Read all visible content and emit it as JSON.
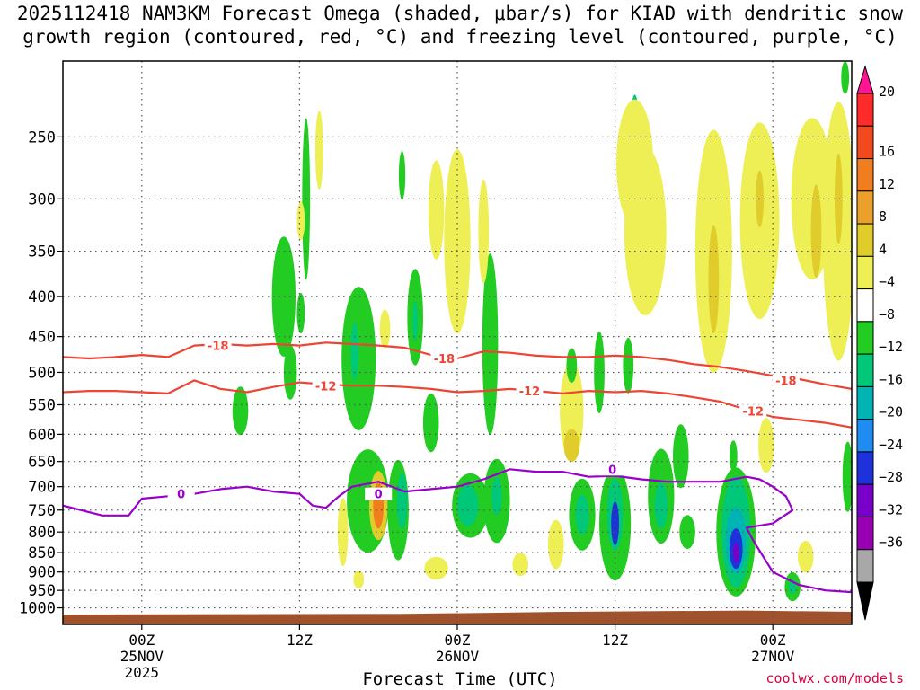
{
  "title_line1": "2025112418 NAM3KM Forecast Omega (shaded, μbar/s) for KIAD with dendritic snow",
  "title_line2": "growth region (contoured, red, °C) and freezing level (contoured, purple, °C)",
  "credit": "coolwx.com/models",
  "colors": {
    "red_contour": "#ee4433",
    "purple_contour": "#9900cc",
    "ground": "#a0522d",
    "grid": "#555555"
  },
  "chart_data": {
    "type": "heatmap",
    "title": "2025112418 NAM3KM Forecast Omega (shaded, μbar/s) for KIAD with dendritic snow growth region (contoured, red, °C) and freezing level (contoured, purple, °C)",
    "xlabel": "Forecast Time (UTC)",
    "ylabel": "",
    "xlim": [
      -6,
      54
    ],
    "ylim": [
      1050,
      200
    ],
    "y_scale": "log-pressure",
    "grid": true,
    "x_ticks": [
      {
        "value": 0,
        "lines": [
          "00Z",
          "25NOV",
          "2025"
        ]
      },
      {
        "value": 12,
        "lines": [
          "12Z"
        ]
      },
      {
        "value": 24,
        "lines": [
          "00Z",
          "26NOV"
        ]
      },
      {
        "value": 36,
        "lines": [
          "12Z"
        ]
      },
      {
        "value": 48,
        "lines": [
          "00Z",
          "27NOV"
        ]
      }
    ],
    "y_ticks": [
      250,
      300,
      350,
      400,
      450,
      500,
      550,
      600,
      650,
      700,
      750,
      800,
      850,
      900,
      950,
      1000
    ],
    "colorbar": {
      "labels": [
        "20",
        "16",
        "12",
        "8",
        "4",
        "−4",
        "−8",
        "−12",
        "−16",
        "−20",
        "−24",
        "−28",
        "−32",
        "−36"
      ],
      "colors": [
        "#ff2a2a",
        "#f04a1e",
        "#f07d1e",
        "#eaa02a",
        "#e0cc2a",
        "#eeee55",
        "#ffffff",
        "#22cc22",
        "#00c878",
        "#00b4b4",
        "#1e8cf0",
        "#1e32dc",
        "#7800c8",
        "#9900b4",
        "#a8a8a8"
      ],
      "extend_top": "#ff1493",
      "extend_bottom": "#000000"
    },
    "series": [
      {
        "name": "-18",
        "x": [
          -6,
          -4,
          -2,
          0,
          2,
          4,
          6,
          8,
          10,
          12,
          14,
          16,
          18,
          20,
          22,
          24,
          26,
          28,
          30,
          32,
          34,
          36,
          38,
          40,
          42,
          44,
          46,
          48,
          50,
          52,
          54
        ],
        "y": [
          478,
          480,
          478,
          475,
          478,
          462,
          460,
          462,
          460,
          462,
          458,
          460,
          462,
          465,
          475,
          480,
          470,
          472,
          476,
          478,
          478,
          476,
          478,
          482,
          488,
          492,
          498,
          505,
          510,
          518,
          525
        ]
      },
      {
        "name": "-12",
        "x": [
          -6,
          -4,
          -2,
          0,
          2,
          4,
          6,
          8,
          10,
          12,
          14,
          16,
          18,
          20,
          22,
          24,
          26,
          28,
          30,
          32,
          34,
          36,
          38,
          40,
          42,
          44,
          46,
          48,
          50,
          52,
          54
        ],
        "y": [
          530,
          528,
          528,
          530,
          532,
          512,
          525,
          530,
          522,
          515,
          518,
          520,
          520,
          522,
          525,
          530,
          528,
          525,
          528,
          532,
          528,
          530,
          528,
          532,
          538,
          545,
          558,
          570,
          575,
          580,
          588
        ]
      },
      {
        "name": "0",
        "x": [
          -6,
          -3,
          -1,
          0,
          2,
          4,
          6,
          8,
          10,
          12,
          13,
          14,
          15,
          16,
          18,
          20,
          22,
          24,
          26,
          28,
          30,
          32,
          34,
          36,
          38,
          40,
          42,
          44,
          46,
          47,
          48,
          49,
          49.5,
          48,
          46,
          46.5,
          48,
          50,
          52,
          54
        ],
        "y": [
          740,
          762,
          762,
          725,
          720,
          715,
          705,
          700,
          710,
          715,
          740,
          745,
          720,
          700,
          690,
          710,
          705,
          700,
          685,
          665,
          670,
          670,
          680,
          678,
          685,
          690,
          690,
          690,
          680,
          685,
          700,
          720,
          750,
          780,
          790,
          820,
          900,
          935,
          950,
          955
        ]
      }
    ],
    "contour_labels": [
      {
        "text": "-18",
        "x": 5.8,
        "y": 462,
        "color": "#ee4433"
      },
      {
        "text": "-18",
        "x": 23,
        "y": 480,
        "color": "#ee4433"
      },
      {
        "text": "-18",
        "x": 49,
        "y": 512,
        "color": "#ee4433"
      },
      {
        "text": "-12",
        "x": 14,
        "y": 520,
        "color": "#ee4433"
      },
      {
        "text": "-12",
        "x": 29.5,
        "y": 528,
        "color": "#ee4433"
      },
      {
        "text": "-12",
        "x": 46.5,
        "y": 560,
        "color": "#ee4433"
      },
      {
        "text": "0",
        "x": 3,
        "y": 715,
        "color": "#9900cc"
      },
      {
        "text": "0",
        "x": 18,
        "y": 715,
        "color": "#9900cc"
      },
      {
        "text": "0",
        "x": 35.8,
        "y": 665,
        "color": "#9900cc"
      }
    ],
    "omega_cells": [
      {
        "x": 10.8,
        "y": 400,
        "rx": 0.9,
        "ry": 70,
        "v": -6
      },
      {
        "x": 11.3,
        "y": 500,
        "rx": 0.5,
        "ry": 40,
        "v": -6
      },
      {
        "x": 7.5,
        "y": 560,
        "rx": 0.6,
        "ry": 40,
        "v": -6
      },
      {
        "x": 12.5,
        "y": 300,
        "rx": 0.3,
        "ry": 70,
        "v": -6
      },
      {
        "x": 13.5,
        "y": 260,
        "rx": 0.3,
        "ry": 30,
        "v": 4
      },
      {
        "x": 12.1,
        "y": 320,
        "rx": 0.3,
        "ry": 18,
        "v": 4
      },
      {
        "x": 12.1,
        "y": 420,
        "rx": 0.3,
        "ry": 25,
        "v": -6
      },
      {
        "x": 16.5,
        "y": 480,
        "rx": 1.3,
        "ry": 100,
        "v": -6
      },
      {
        "x": 16.2,
        "y": 470,
        "rx": 0.3,
        "ry": 40,
        "v": -12
      },
      {
        "x": 19.8,
        "y": 280,
        "rx": 0.25,
        "ry": 20,
        "v": -6
      },
      {
        "x": 18.5,
        "y": 440,
        "rx": 0.4,
        "ry": 25,
        "v": 4
      },
      {
        "x": 17.2,
        "y": 730,
        "rx": 1.6,
        "ry": 110,
        "v": -6
      },
      {
        "x": 18.0,
        "y": 740,
        "rx": 0.7,
        "ry": 75,
        "v": 8
      },
      {
        "x": 18.0,
        "y": 740,
        "rx": 0.4,
        "ry": 50,
        "v": 16
      },
      {
        "x": 19.5,
        "y": 750,
        "rx": 0.8,
        "ry": 110,
        "v": -6
      },
      {
        "x": 19.8,
        "y": 730,
        "rx": 0.4,
        "ry": 60,
        "v": -12
      },
      {
        "x": 15.3,
        "y": 800,
        "rx": 0.4,
        "ry": 80,
        "v": 4
      },
      {
        "x": 16.5,
        "y": 920,
        "rx": 0.4,
        "ry": 25,
        "v": 4
      },
      {
        "x": 20.8,
        "y": 425,
        "rx": 0.6,
        "ry": 60,
        "v": -6
      },
      {
        "x": 20.8,
        "y": 430,
        "rx": 0.2,
        "ry": 25,
        "v": -12
      },
      {
        "x": 22.4,
        "y": 310,
        "rx": 0.6,
        "ry": 45,
        "v": 4
      },
      {
        "x": 24.0,
        "y": 340,
        "rx": 1.0,
        "ry": 90,
        "v": 4
      },
      {
        "x": 22.0,
        "y": 580,
        "rx": 0.6,
        "ry": 50,
        "v": -6
      },
      {
        "x": 26.5,
        "y": 460,
        "rx": 0.6,
        "ry": 120,
        "v": -6
      },
      {
        "x": 26.0,
        "y": 330,
        "rx": 0.4,
        "ry": 50,
        "v": 4
      },
      {
        "x": 25.0,
        "y": 740,
        "rx": 1.4,
        "ry": 70,
        "v": -6
      },
      {
        "x": 24.8,
        "y": 740,
        "rx": 0.8,
        "ry": 45,
        "v": -12
      },
      {
        "x": 27.0,
        "y": 730,
        "rx": 1.0,
        "ry": 90,
        "v": -6
      },
      {
        "x": 27.0,
        "y": 720,
        "rx": 0.4,
        "ry": 40,
        "v": -12
      },
      {
        "x": 22.4,
        "y": 890,
        "rx": 0.9,
        "ry": 30,
        "v": 4
      },
      {
        "x": 28.8,
        "y": 880,
        "rx": 0.6,
        "ry": 30,
        "v": 4
      },
      {
        "x": 31.5,
        "y": 830,
        "rx": 0.6,
        "ry": 60,
        "v": 4
      },
      {
        "x": 32.7,
        "y": 560,
        "rx": 0.9,
        "ry": 80,
        "v": 4
      },
      {
        "x": 32.7,
        "y": 620,
        "rx": 0.6,
        "ry": 30,
        "v": 8
      },
      {
        "x": 32.7,
        "y": 490,
        "rx": 0.4,
        "ry": 25,
        "v": -6
      },
      {
        "x": 34.8,
        "y": 500,
        "rx": 0.4,
        "ry": 60,
        "v": -6
      },
      {
        "x": 33.5,
        "y": 760,
        "rx": 1.0,
        "ry": 80,
        "v": -6
      },
      {
        "x": 33.5,
        "y": 760,
        "rx": 0.5,
        "ry": 45,
        "v": -12
      },
      {
        "x": 36.0,
        "y": 780,
        "rx": 1.2,
        "ry": 130,
        "v": -6
      },
      {
        "x": 36.0,
        "y": 760,
        "rx": 0.6,
        "ry": 80,
        "v": -12
      },
      {
        "x": 36.0,
        "y": 780,
        "rx": 0.3,
        "ry": 50,
        "v": -24
      },
      {
        "x": 37.5,
        "y": 240,
        "rx": 0.3,
        "ry": 20,
        "v": -12
      },
      {
        "x": 37.5,
        "y": 270,
        "rx": 1.4,
        "ry": 50,
        "v": 4
      },
      {
        "x": 38.3,
        "y": 330,
        "rx": 1.6,
        "ry": 80,
        "v": 4
      },
      {
        "x": 37.0,
        "y": 490,
        "rx": 0.4,
        "ry": 40,
        "v": -6
      },
      {
        "x": 39.5,
        "y": 720,
        "rx": 1.0,
        "ry": 100,
        "v": -6
      },
      {
        "x": 39.5,
        "y": 740,
        "rx": 0.5,
        "ry": 50,
        "v": -12
      },
      {
        "x": 41.0,
        "y": 640,
        "rx": 0.6,
        "ry": 60,
        "v": -6
      },
      {
        "x": 41.5,
        "y": 800,
        "rx": 0.6,
        "ry": 40,
        "v": -6
      },
      {
        "x": 43.5,
        "y": 350,
        "rx": 1.4,
        "ry": 120,
        "v": 4
      },
      {
        "x": 43.5,
        "y": 380,
        "rx": 0.4,
        "ry": 60,
        "v": 8
      },
      {
        "x": 45.2,
        "y": 800,
        "rx": 1.5,
        "ry": 150,
        "v": -6
      },
      {
        "x": 45.2,
        "y": 800,
        "rx": 1.1,
        "ry": 130,
        "v": -12
      },
      {
        "x": 45.2,
        "y": 820,
        "rx": 0.8,
        "ry": 80,
        "v": -16
      },
      {
        "x": 45.2,
        "y": 840,
        "rx": 0.5,
        "ry": 50,
        "v": -24
      },
      {
        "x": 45.2,
        "y": 850,
        "rx": 0.2,
        "ry": 25,
        "v": -32
      },
      {
        "x": 45.0,
        "y": 640,
        "rx": 0.3,
        "ry": 30,
        "v": -6
      },
      {
        "x": 47.0,
        "y": 320,
        "rx": 1.5,
        "ry": 90,
        "v": 4
      },
      {
        "x": 47.0,
        "y": 300,
        "rx": 0.3,
        "ry": 25,
        "v": 8
      },
      {
        "x": 47.5,
        "y": 620,
        "rx": 0.6,
        "ry": 50,
        "v": 4
      },
      {
        "x": 49.5,
        "y": 940,
        "rx": 0.6,
        "ry": 40,
        "v": -6
      },
      {
        "x": 49.5,
        "y": 940,
        "rx": 0.3,
        "ry": 20,
        "v": -12
      },
      {
        "x": 51.0,
        "y": 300,
        "rx": 1.6,
        "ry": 70,
        "v": 4
      },
      {
        "x": 51.3,
        "y": 330,
        "rx": 0.4,
        "ry": 45,
        "v": 8
      },
      {
        "x": 53.0,
        "y": 330,
        "rx": 1.2,
        "ry": 120,
        "v": 4
      },
      {
        "x": 53.0,
        "y": 300,
        "rx": 0.3,
        "ry": 40,
        "v": 8
      },
      {
        "x": 50.5,
        "y": 860,
        "rx": 0.6,
        "ry": 40,
        "v": 4
      },
      {
        "x": 53.7,
        "y": 680,
        "rx": 0.4,
        "ry": 70,
        "v": -6
      },
      {
        "x": 53.5,
        "y": 210,
        "rx": 0.3,
        "ry": 10,
        "v": -6
      }
    ]
  }
}
